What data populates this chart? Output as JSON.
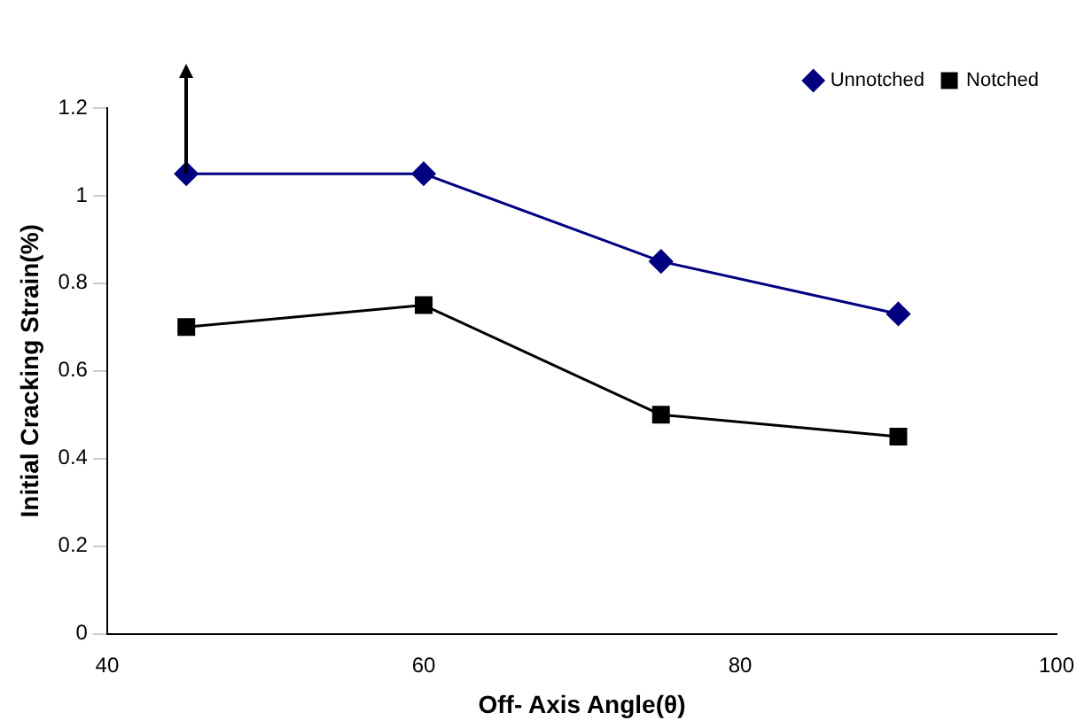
{
  "chart_data": {
    "type": "line",
    "xlabel": "Off- Axis Angle(θ)",
    "ylabel": "Initial Cracking Strain(%)",
    "xlim": [
      40,
      100
    ],
    "xticks": [
      40,
      60,
      80,
      100
    ],
    "ylim": [
      0,
      1.2
    ],
    "yticks": [
      0,
      0.2,
      0.4,
      0.6,
      0.8,
      1,
      1.2
    ],
    "x": [
      45,
      60,
      75,
      90
    ],
    "series": [
      {
        "name": "Unnotched",
        "color": "#000080",
        "values": [
          1.05,
          1.05,
          0.85,
          0.73
        ],
        "marker": "diamond"
      },
      {
        "name": "Notched",
        "color": "#000000",
        "values": [
          0.7,
          0.75,
          0.5,
          0.45
        ],
        "marker": "square"
      }
    ],
    "grid": false,
    "legend": "top right"
  }
}
